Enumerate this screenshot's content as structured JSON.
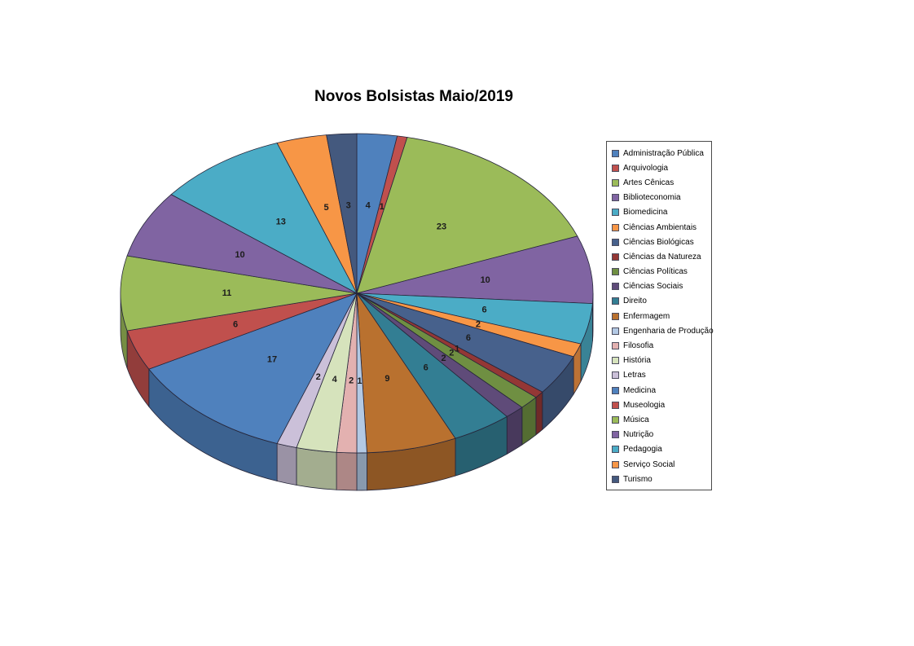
{
  "chart_title": "Novos Bolsistas Maio/2019",
  "chart_data": {
    "type": "pie",
    "style": "3d",
    "title": "Novos Bolsistas Maio/2019",
    "legend_position": "right",
    "direction": "clockwise",
    "start_angle_deg": 0,
    "total": 146,
    "categories": [
      "Administração Pública",
      "Arquivologia",
      "Artes Cênicas",
      "Biblioteconomia",
      "Biomedicina",
      "Ciências Ambientais",
      "Ciências Biológicas",
      "Ciências da Natureza",
      "Ciências Políticas",
      "Ciências Sociais",
      "Direito",
      "Enfermagem",
      "Engenharia de Produção",
      "Filosofia",
      "História",
      "Letras",
      "Medicina",
      "Museologia",
      "Música",
      "Nutrição",
      "Pedagogia",
      "Serviço Social",
      "Turismo"
    ],
    "values": [
      4,
      1,
      23,
      10,
      6,
      2,
      6,
      1,
      2,
      2,
      6,
      9,
      1,
      2,
      4,
      2,
      17,
      6,
      11,
      10,
      13,
      5,
      3
    ],
    "colors": [
      "#4F81BD",
      "#C0504D",
      "#9BBB59",
      "#8064A2",
      "#4BACC6",
      "#F79646",
      "#47618C",
      "#943735",
      "#6F8F42",
      "#5F4B79",
      "#337E93",
      "#B9712F",
      "#B3C9E4",
      "#E3B1B0",
      "#D6E3BC",
      "#CBC0D9",
      "#4F81BD",
      "#C0504D",
      "#9BBB59",
      "#8064A2",
      "#4BACC6",
      "#F79646",
      "#44597E"
    ],
    "data_labels": "value"
  },
  "style": {
    "label_color": "#1c1c1c",
    "slice_stroke": "#26263a",
    "legend_border": "#4a4a4a",
    "background": "#ffffff"
  }
}
